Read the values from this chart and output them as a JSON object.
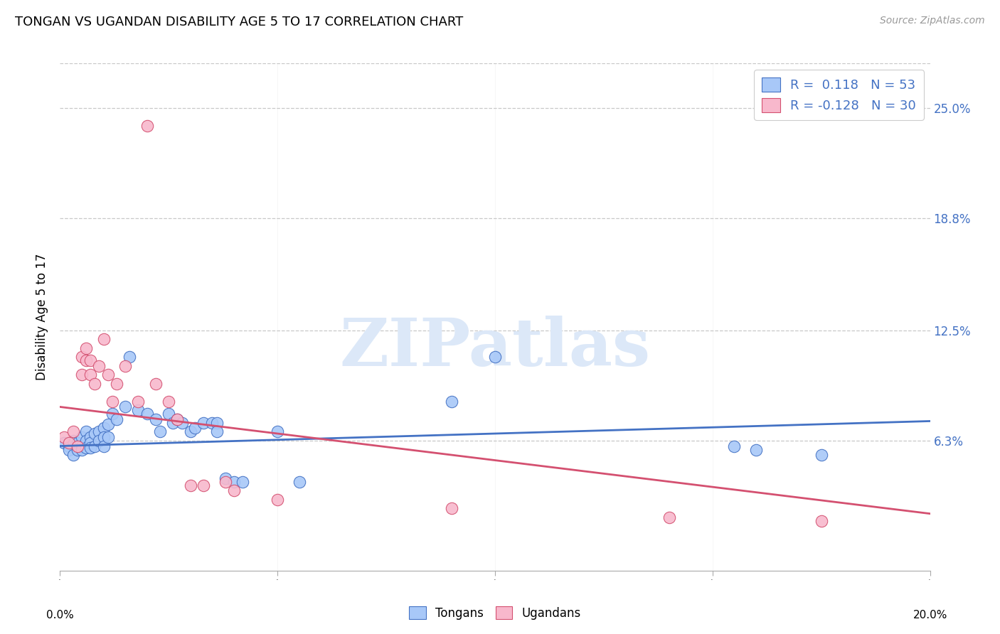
{
  "title": "TONGAN VS UGANDAN DISABILITY AGE 5 TO 17 CORRELATION CHART",
  "source": "Source: ZipAtlas.com",
  "ylabel": "Disability Age 5 to 17",
  "ytick_labels": [
    "6.3%",
    "12.5%",
    "18.8%",
    "25.0%"
  ],
  "ytick_values": [
    0.063,
    0.125,
    0.188,
    0.25
  ],
  "xlim": [
    0.0,
    0.2
  ],
  "ylim": [
    -0.01,
    0.275
  ],
  "legend_tongan_R": "0.118",
  "legend_tongan_N": "53",
  "legend_ugandan_R": "-0.128",
  "legend_ugandan_N": "30",
  "color_tongan_fill": "#a8c8f8",
  "color_ugandan_fill": "#f8b8cc",
  "color_tongan_edge": "#4472c4",
  "color_ugandan_edge": "#d45070",
  "color_trend_tongan": "#4472c4",
  "color_trend_ugandan": "#d45070",
  "watermark_color": "#dce8f8",
  "tongan_x": [
    0.001,
    0.002,
    0.002,
    0.003,
    0.003,
    0.004,
    0.004,
    0.005,
    0.005,
    0.005,
    0.006,
    0.006,
    0.006,
    0.007,
    0.007,
    0.007,
    0.008,
    0.008,
    0.009,
    0.009,
    0.01,
    0.01,
    0.01,
    0.011,
    0.011,
    0.012,
    0.013,
    0.015,
    0.016,
    0.018,
    0.02,
    0.022,
    0.023,
    0.025,
    0.026,
    0.027,
    0.028,
    0.03,
    0.031,
    0.033,
    0.035,
    0.036,
    0.036,
    0.038,
    0.04,
    0.042,
    0.05,
    0.055,
    0.09,
    0.1,
    0.155,
    0.16,
    0.175
  ],
  "tongan_y": [
    0.062,
    0.06,
    0.058,
    0.063,
    0.055,
    0.062,
    0.058,
    0.065,
    0.06,
    0.058,
    0.068,
    0.063,
    0.059,
    0.065,
    0.062,
    0.059,
    0.067,
    0.06,
    0.068,
    0.063,
    0.07,
    0.065,
    0.06,
    0.072,
    0.065,
    0.078,
    0.075,
    0.082,
    0.11,
    0.08,
    0.078,
    0.075,
    0.068,
    0.078,
    0.073,
    0.075,
    0.073,
    0.068,
    0.07,
    0.073,
    0.073,
    0.073,
    0.068,
    0.042,
    0.04,
    0.04,
    0.068,
    0.04,
    0.085,
    0.11,
    0.06,
    0.058,
    0.055
  ],
  "ugandan_x": [
    0.001,
    0.002,
    0.003,
    0.004,
    0.005,
    0.005,
    0.006,
    0.006,
    0.007,
    0.007,
    0.008,
    0.009,
    0.01,
    0.011,
    0.012,
    0.013,
    0.015,
    0.018,
    0.02,
    0.022,
    0.025,
    0.027,
    0.03,
    0.033,
    0.038,
    0.04,
    0.05,
    0.09,
    0.14,
    0.175
  ],
  "ugandan_y": [
    0.065,
    0.062,
    0.068,
    0.06,
    0.11,
    0.1,
    0.115,
    0.108,
    0.108,
    0.1,
    0.095,
    0.105,
    0.12,
    0.1,
    0.085,
    0.095,
    0.105,
    0.085,
    0.24,
    0.095,
    0.085,
    0.075,
    0.038,
    0.038,
    0.04,
    0.035,
    0.03,
    0.025,
    0.02,
    0.018
  ],
  "trend_tongan_x0": 0.0,
  "trend_tongan_x1": 0.2,
  "trend_tongan_y0": 0.06,
  "trend_tongan_y1": 0.074,
  "trend_ugandan_x0": 0.0,
  "trend_ugandan_x1": 0.2,
  "trend_ugandan_y0": 0.082,
  "trend_ugandan_y1": 0.022
}
